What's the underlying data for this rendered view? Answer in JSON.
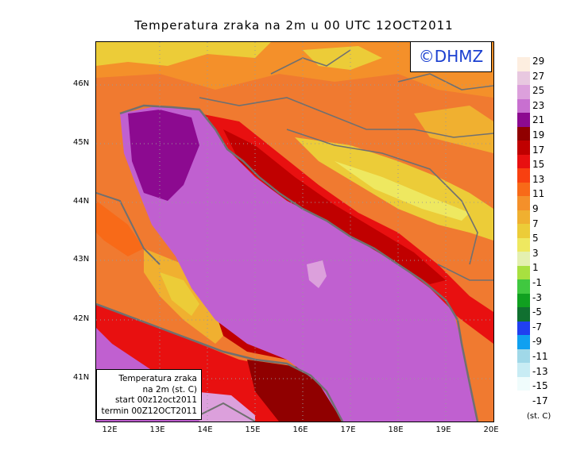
{
  "title": "Temperatura zraka na 2m u 00 UTC 12OCT2011",
  "logo": "©DHMZ",
  "infobox": {
    "line1": "Temperatura zraka",
    "line2": "na 2m (st. C)",
    "line3": "start 00z12oct2011",
    "line4": "termin 00Z12OCT2011"
  },
  "lat_labels": [
    "46N",
    "45N",
    "44N",
    "43N",
    "42N",
    "41N"
  ],
  "lon_labels": [
    "12E",
    "13E",
    "14E",
    "15E",
    "16E",
    "17E",
    "18E",
    "19E",
    "20E"
  ],
  "colorbar": {
    "unit": "(st. C)",
    "labels": [
      "29",
      "27",
      "25",
      "23",
      "21",
      "19",
      "17",
      "15",
      "13",
      "11",
      "9",
      "7",
      "5",
      "3",
      "1",
      "-1",
      "-3",
      "-5",
      "-7",
      "-9",
      "-11",
      "-13",
      "-15",
      "-17"
    ],
    "colors": [
      "#fdeee0",
      "#e8c8e0",
      "#dca0dc",
      "#c870d0",
      "#8c0a90",
      "#900000",
      "#c00000",
      "#e81010",
      "#f84010",
      "#f86a18",
      "#f4902a",
      "#f0b030",
      "#eccc38",
      "#eee860",
      "#e4f0b0",
      "#a8e040",
      "#40c840",
      "#10a020",
      "#107030",
      "#2040f0",
      "#10a0f0",
      "#a0d8e8",
      "#c8ecf4",
      "#f0fcfc"
    ]
  }
}
